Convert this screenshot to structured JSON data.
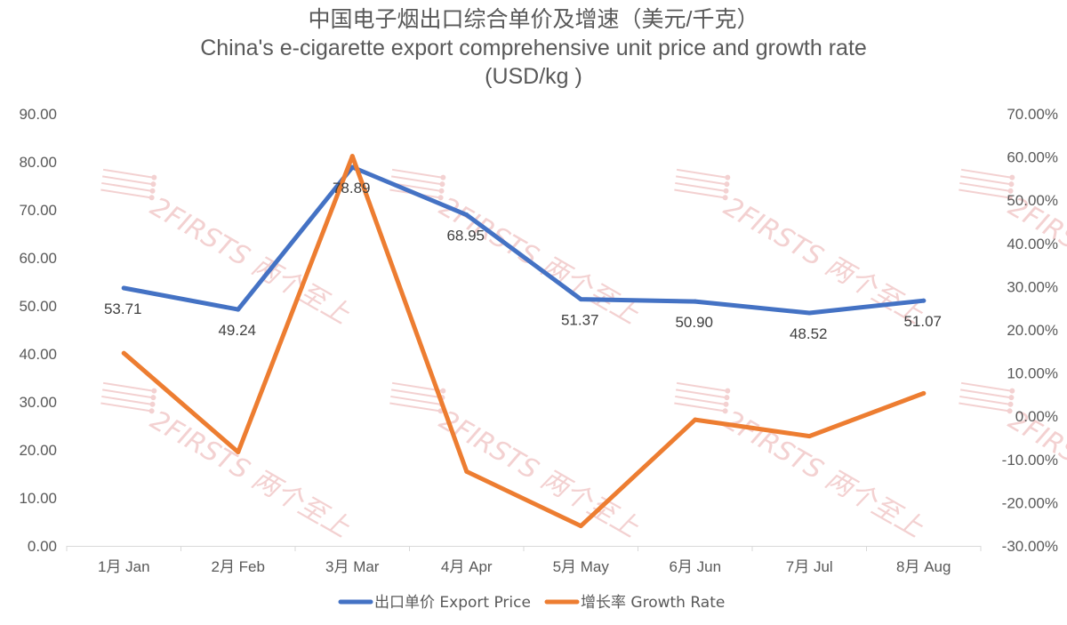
{
  "chart_data": {
    "type": "line",
    "title_cn": "中国电子烟出口综合单价及增速（美元/千克）",
    "title_en": "China's e-cigarette export comprehensive unit price and growth rate",
    "title_unit": "(USD/kg )",
    "categories": [
      "1月 Jan",
      "2月 Feb",
      "3月 Mar",
      "4月 Apr",
      "5月 May",
      "6月 Jun",
      "7月 Jul",
      "8月 Aug"
    ],
    "left_axis": {
      "ylim": [
        0,
        90
      ],
      "ticks": [
        0,
        10,
        20,
        30,
        40,
        50,
        60,
        70,
        80,
        90
      ],
      "tick_labels": [
        "0.00",
        "10.00",
        "20.00",
        "30.00",
        "40.00",
        "50.00",
        "60.00",
        "70.00",
        "80.00",
        "90.00"
      ]
    },
    "right_axis": {
      "ylim": [
        -30,
        70
      ],
      "ticks": [
        -30,
        -20,
        -10,
        0,
        10,
        20,
        30,
        40,
        50,
        60,
        70
      ],
      "tick_labels": [
        "-30.00%",
        "-20.00%",
        "-10.00%",
        "0.00%",
        "10.00%",
        "20.00%",
        "30.00%",
        "40.00%",
        "50.00%",
        "60.00%",
        "70.00%"
      ]
    },
    "series": [
      {
        "name": "出口单价 Export Price",
        "axis": "left",
        "color": "#4472c4",
        "values": [
          53.71,
          49.24,
          78.89,
          68.95,
          51.37,
          50.9,
          48.52,
          51.07
        ],
        "labels": [
          "53.71",
          "49.24",
          "78.89",
          "68.95",
          "51.37",
          "50.90",
          "48.52",
          "51.07"
        ],
        "label_pos": [
          "below",
          "below",
          "below",
          "below",
          "below",
          "below",
          "below",
          "below"
        ]
      },
      {
        "name": "增长率 Growth Rate",
        "axis": "right",
        "color": "#ed7d31",
        "values": [
          14.6,
          -8.3,
          60.2,
          -12.8,
          -25.4,
          -0.8,
          -4.6,
          5.3
        ]
      }
    ],
    "legend_position": "bottom",
    "grid": false
  },
  "watermark": {
    "text": "2FIRSTS 两个至上",
    "color": "#f2caca"
  }
}
